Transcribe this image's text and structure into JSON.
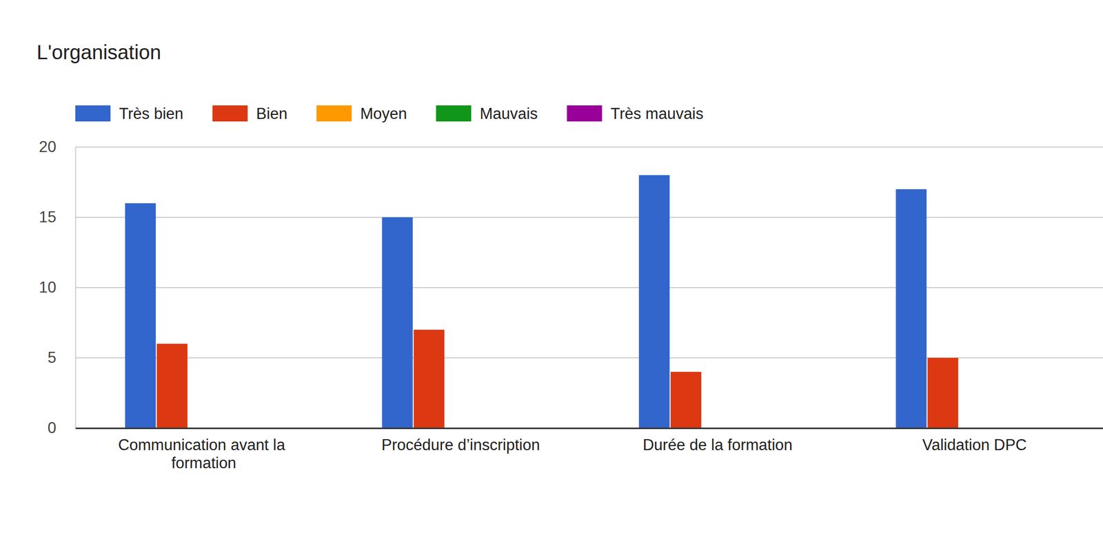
{
  "chart_data": {
    "type": "bar",
    "title": "L'organisation",
    "categories": [
      "Communication avant la formation",
      "Procédure d’inscription",
      "Durée de la formation",
      "Validation DPC"
    ],
    "series": [
      {
        "name": "Très bien",
        "color": "#3366cc",
        "values": [
          16,
          15,
          18,
          17
        ]
      },
      {
        "name": "Bien",
        "color": "#dc3912",
        "values": [
          6,
          7,
          4,
          5
        ]
      },
      {
        "name": "Moyen",
        "color": "#ff9900",
        "values": [
          0,
          0,
          0,
          0
        ]
      },
      {
        "name": "Mauvais",
        "color": "#109618",
        "values": [
          0,
          0,
          0,
          0
        ]
      },
      {
        "name": "Très mauvais",
        "color": "#990099",
        "values": [
          0,
          0,
          0,
          0
        ]
      }
    ],
    "ylim": [
      0,
      20
    ],
    "yticks": [
      0,
      5,
      10,
      15,
      20
    ],
    "grid": true,
    "legend": "top"
  }
}
